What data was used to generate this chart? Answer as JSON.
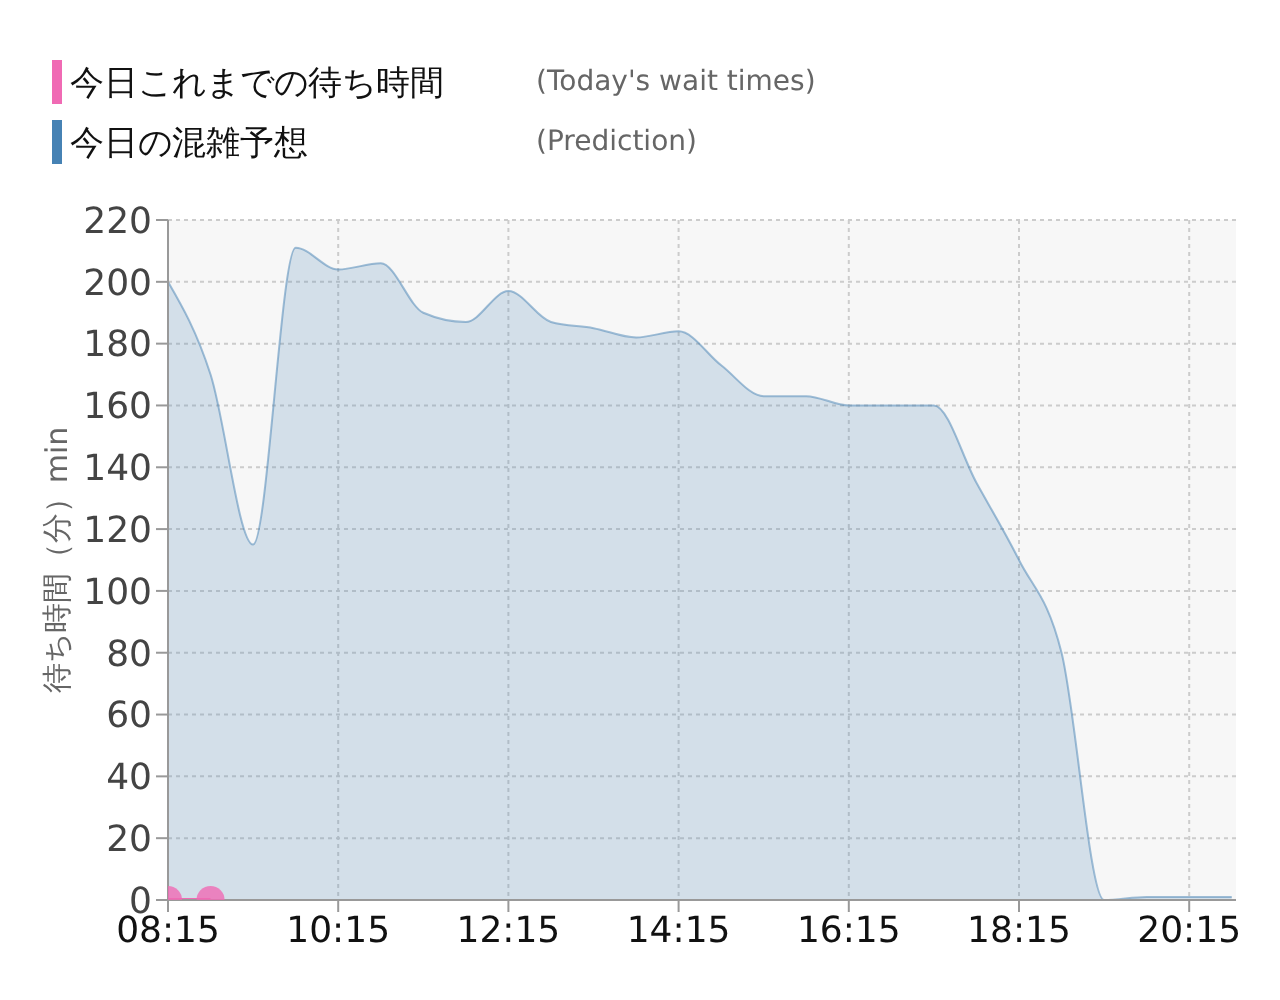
{
  "chart_data": {
    "type": "area",
    "ylabel": "待ち時間（分）min",
    "xlim": [
      8.25,
      20.8
    ],
    "xticks": [
      {
        "value": 8.25,
        "label": "08:15"
      },
      {
        "value": 10.25,
        "label": "10:15"
      },
      {
        "value": 12.25,
        "label": "12:15"
      },
      {
        "value": 14.25,
        "label": "14:15"
      },
      {
        "value": 16.25,
        "label": "16:15"
      },
      {
        "value": 18.25,
        "label": "18:15"
      },
      {
        "value": 20.25,
        "label": "20:15"
      }
    ],
    "ylim": [
      0,
      220
    ],
    "yticks": [
      0,
      20,
      40,
      60,
      80,
      100,
      120,
      140,
      160,
      180,
      200,
      220
    ],
    "grid": true,
    "legend": "top left",
    "annotations": [
      "(Today's wait times)",
      "(Prediction)"
    ],
    "series": [
      {
        "name": "今日これまでの待ち時間",
        "type": "line",
        "marker": "circle",
        "color": "#f06ab4",
        "x": [
          8.25,
          8.75
        ],
        "values": [
          0,
          0
        ]
      },
      {
        "name": "今日の混雑予想",
        "color": "#4682b4",
        "x": [
          8.25,
          8.75,
          9.25,
          9.75,
          10.25,
          10.75,
          11.25,
          11.75,
          12.25,
          12.75,
          13.25,
          13.75,
          14.25,
          14.75,
          15.25,
          15.75,
          16.25,
          16.75,
          17.25,
          17.75,
          18.25,
          18.75,
          19.25,
          19.75,
          20.25,
          20.75
        ],
        "values": [
          200,
          170,
          115,
          211,
          204,
          206,
          190,
          187,
          197,
          187,
          185,
          182,
          184,
          173,
          163,
          163,
          160,
          160,
          160,
          135,
          110,
          80,
          0,
          1,
          1,
          1
        ]
      }
    ]
  }
}
